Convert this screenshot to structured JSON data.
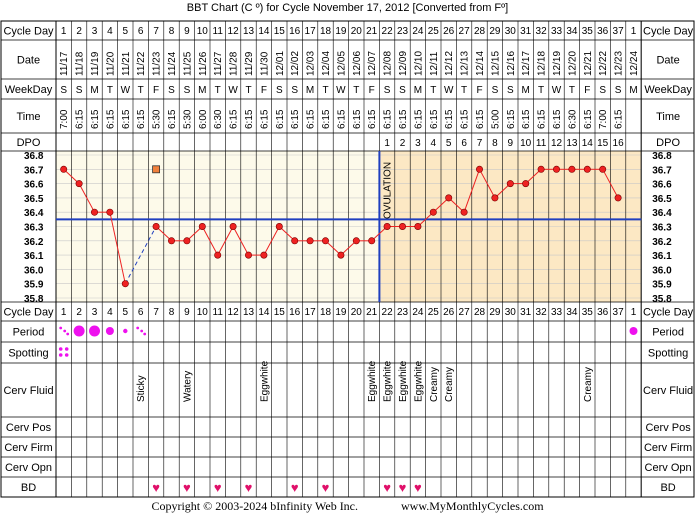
{
  "title": "BBT Chart (C º) for Cycle November 17, 2012  [Converted from Fº]",
  "row_labels": {
    "cycle_day": "Cycle Day",
    "date": "Date",
    "weekday": "WeekDay",
    "time": "Time",
    "dpo": "DPO",
    "period": "Period",
    "spotting": "Spotting",
    "cerv_fluid": "Cerv Fluid",
    "cerv_pos": "Cerv Pos",
    "cerv_firm": "Cerv Firm",
    "cerv_opn": "Cerv Opn",
    "bd": "BD"
  },
  "ovulation_label": "OVULATION",
  "footer": {
    "copyright": "Copyright © 2003-2024 bInfinity Web Inc.",
    "site": "www.MyMonthlyCycles.com"
  },
  "colors": {
    "follicular_bg": "#fdfaea",
    "luteal_bg": "#fce8c4",
    "grid": "#c8c8c8",
    "temp_line": "#ee2222",
    "coverline": "#1f3fbf",
    "ovulation_line": "#1f3fbf",
    "period_dot": "#ee11ee",
    "heart": "#e0106a",
    "marker_fill": "#f0803c"
  },
  "columns": {
    "cycle_days": [
      "1",
      "2",
      "3",
      "4",
      "5",
      "6",
      "7",
      "8",
      "9",
      "10",
      "11",
      "12",
      "13",
      "14",
      "15",
      "16",
      "17",
      "18",
      "19",
      "20",
      "21",
      "22",
      "23",
      "24",
      "25",
      "26",
      "27",
      "28",
      "29",
      "30",
      "31",
      "32",
      "33",
      "34",
      "35",
      "36",
      "37",
      "1"
    ],
    "dates": [
      "11/17",
      "11/18",
      "11/19",
      "11/20",
      "11/21",
      "11/22",
      "11/23",
      "11/24",
      "11/25",
      "11/26",
      "11/27",
      "11/28",
      "11/29",
      "11/30",
      "12/01",
      "12/02",
      "12/03",
      "12/04",
      "12/05",
      "12/06",
      "12/07",
      "12/08",
      "12/09",
      "12/10",
      "12/11",
      "12/12",
      "12/13",
      "12/14",
      "12/15",
      "12/16",
      "12/17",
      "12/18",
      "12/19",
      "12/20",
      "12/21",
      "12/22",
      "12/23",
      "12/24"
    ],
    "weekdays": [
      "S",
      "S",
      "M",
      "T",
      "W",
      "T",
      "F",
      "S",
      "S",
      "M",
      "T",
      "W",
      "T",
      "F",
      "S",
      "S",
      "M",
      "T",
      "W",
      "T",
      "F",
      "S",
      "S",
      "M",
      "T",
      "W",
      "T",
      "F",
      "S",
      "S",
      "M",
      "T",
      "W",
      "T",
      "F",
      "S",
      "S",
      "M"
    ],
    "times": [
      "7:00",
      "6:15",
      "6:15",
      "6:15",
      "6:15",
      "6:15",
      "5:30",
      "6:15",
      "5:30",
      "6:00",
      "6:30",
      "6:15",
      "6:15",
      "6:15",
      "6:15",
      "6:15",
      "6:15",
      "6:15",
      "6:15",
      "6:15",
      "6:15",
      "6:15",
      "6:15",
      "6:15",
      "6:15",
      "6:15",
      "6:15",
      "6:15",
      "5:00",
      "6:15",
      "6:15",
      "6:15",
      "6:15",
      "6:30",
      "6:15",
      "7:00",
      "6:15",
      ""
    ],
    "dpo": [
      "",
      "",
      "",
      "",
      "",
      "",
      "",
      "",
      "",
      "",
      "",
      "",
      "",
      "",
      "",
      "",
      "",
      "",
      "",
      "",
      "",
      "1",
      "2",
      "3",
      "4",
      "5",
      "6",
      "7",
      "8",
      "9",
      "10",
      "11",
      "12",
      "13",
      "14",
      "15",
      "16",
      ""
    ],
    "period": [
      "spot",
      "heavy",
      "heavy",
      "medium",
      "light",
      "spot",
      "",
      "",
      "",
      "",
      "",
      "",
      "",
      "",
      "",
      "",
      "",
      "",
      "",
      "",
      "",
      "",
      "",
      "",
      "",
      "",
      "",
      "",
      "",
      "",
      "",
      "",
      "",
      "",
      "",
      "",
      "",
      "medium"
    ],
    "spotting": [
      "yes",
      "",
      "",
      "",
      "",
      "",
      "",
      "",
      "",
      "",
      "",
      "",
      "",
      "",
      "",
      "",
      "",
      "",
      "",
      "",
      "",
      "",
      "",
      "",
      "",
      "",
      "",
      "",
      "",
      "",
      "",
      "",
      "",
      "",
      "",
      "",
      "",
      ""
    ],
    "cerv_fluid": [
      "",
      "",
      "",
      "",
      "",
      "Sticky",
      "",
      "",
      "Watery",
      "",
      "",
      "",
      "",
      "Eggwhite",
      "",
      "",
      "",
      "",
      "",
      "",
      "Eggwhite",
      "Eggwhite",
      "Eggwhite",
      "Eggwhite",
      "Creamy",
      "Creamy",
      "",
      "",
      "",
      "",
      "",
      "",
      "",
      "",
      "Creamy",
      "",
      "",
      ""
    ],
    "cerv_pos": [
      "",
      "",
      "",
      "",
      "",
      "",
      "",
      "",
      "",
      "",
      "",
      "",
      "",
      "",
      "",
      "",
      "",
      "",
      "",
      "",
      "",
      "",
      "",
      "",
      "",
      "",
      "",
      "",
      "",
      "",
      "",
      "",
      "",
      "",
      "",
      "",
      "",
      ""
    ],
    "cerv_firm": [
      "",
      "",
      "",
      "",
      "",
      "",
      "",
      "",
      "",
      "",
      "",
      "",
      "",
      "",
      "",
      "",
      "",
      "",
      "",
      "",
      "",
      "",
      "",
      "",
      "",
      "",
      "",
      "",
      "",
      "",
      "",
      "",
      "",
      "",
      "",
      "",
      "",
      ""
    ],
    "cerv_opn": [
      "",
      "",
      "",
      "",
      "",
      "",
      "",
      "",
      "",
      "",
      "",
      "",
      "",
      "",
      "",
      "",
      "",
      "",
      "",
      "",
      "",
      "",
      "",
      "",
      "",
      "",
      "",
      "",
      "",
      "",
      "",
      "",
      "",
      "",
      "",
      "",
      "",
      ""
    ],
    "bd": [
      "",
      "",
      "",
      "",
      "",
      "",
      "yes",
      "",
      "yes",
      "",
      "yes",
      "",
      "yes",
      "",
      "",
      "yes",
      "",
      "yes",
      "",
      "",
      "",
      "yes",
      "yes",
      "yes",
      "",
      "",
      "",
      "",
      "",
      "",
      "",
      "",
      "",
      "",
      "",
      "",
      "",
      ""
    ]
  },
  "chart_data": {
    "type": "line",
    "title": "BBT Chart (C º) for Cycle November 17, 2012  [Converted from Fº]",
    "xlabel": "Cycle Day",
    "ylabel": "",
    "ylim": [
      35.8,
      36.8
    ],
    "y_ticks": [
      "36.8",
      "36.7",
      "36.6",
      "36.5",
      "36.4",
      "36.3",
      "36.2",
      "36.1",
      "36.0",
      "35.9",
      "35.8"
    ],
    "categories": [
      "1",
      "2",
      "3",
      "4",
      "5",
      "6",
      "7",
      "8",
      "9",
      "10",
      "11",
      "12",
      "13",
      "14",
      "15",
      "16",
      "17",
      "18",
      "19",
      "20",
      "21",
      "22",
      "23",
      "24",
      "25",
      "26",
      "27",
      "28",
      "29",
      "30",
      "31",
      "32",
      "33",
      "34",
      "35",
      "36",
      "37",
      "1"
    ],
    "series": [
      {
        "values": [
          36.7,
          36.6,
          36.4,
          36.4,
          35.9,
          null,
          36.3,
          36.2,
          36.2,
          36.3,
          36.1,
          36.3,
          36.1,
          36.1,
          36.3,
          36.2,
          36.2,
          36.2,
          36.1,
          36.2,
          36.2,
          36.3,
          36.3,
          36.3,
          36.4,
          36.5,
          36.4,
          36.7,
          36.5,
          36.6,
          36.6,
          36.7,
          36.7,
          36.7,
          36.7,
          36.7,
          36.5,
          null
        ]
      }
    ],
    "discarded_point": {
      "day_index": 6,
      "value": 36.7
    },
    "coverline": 36.35,
    "ovulation_day_index": 21,
    "grid": true,
    "legend": "none"
  }
}
